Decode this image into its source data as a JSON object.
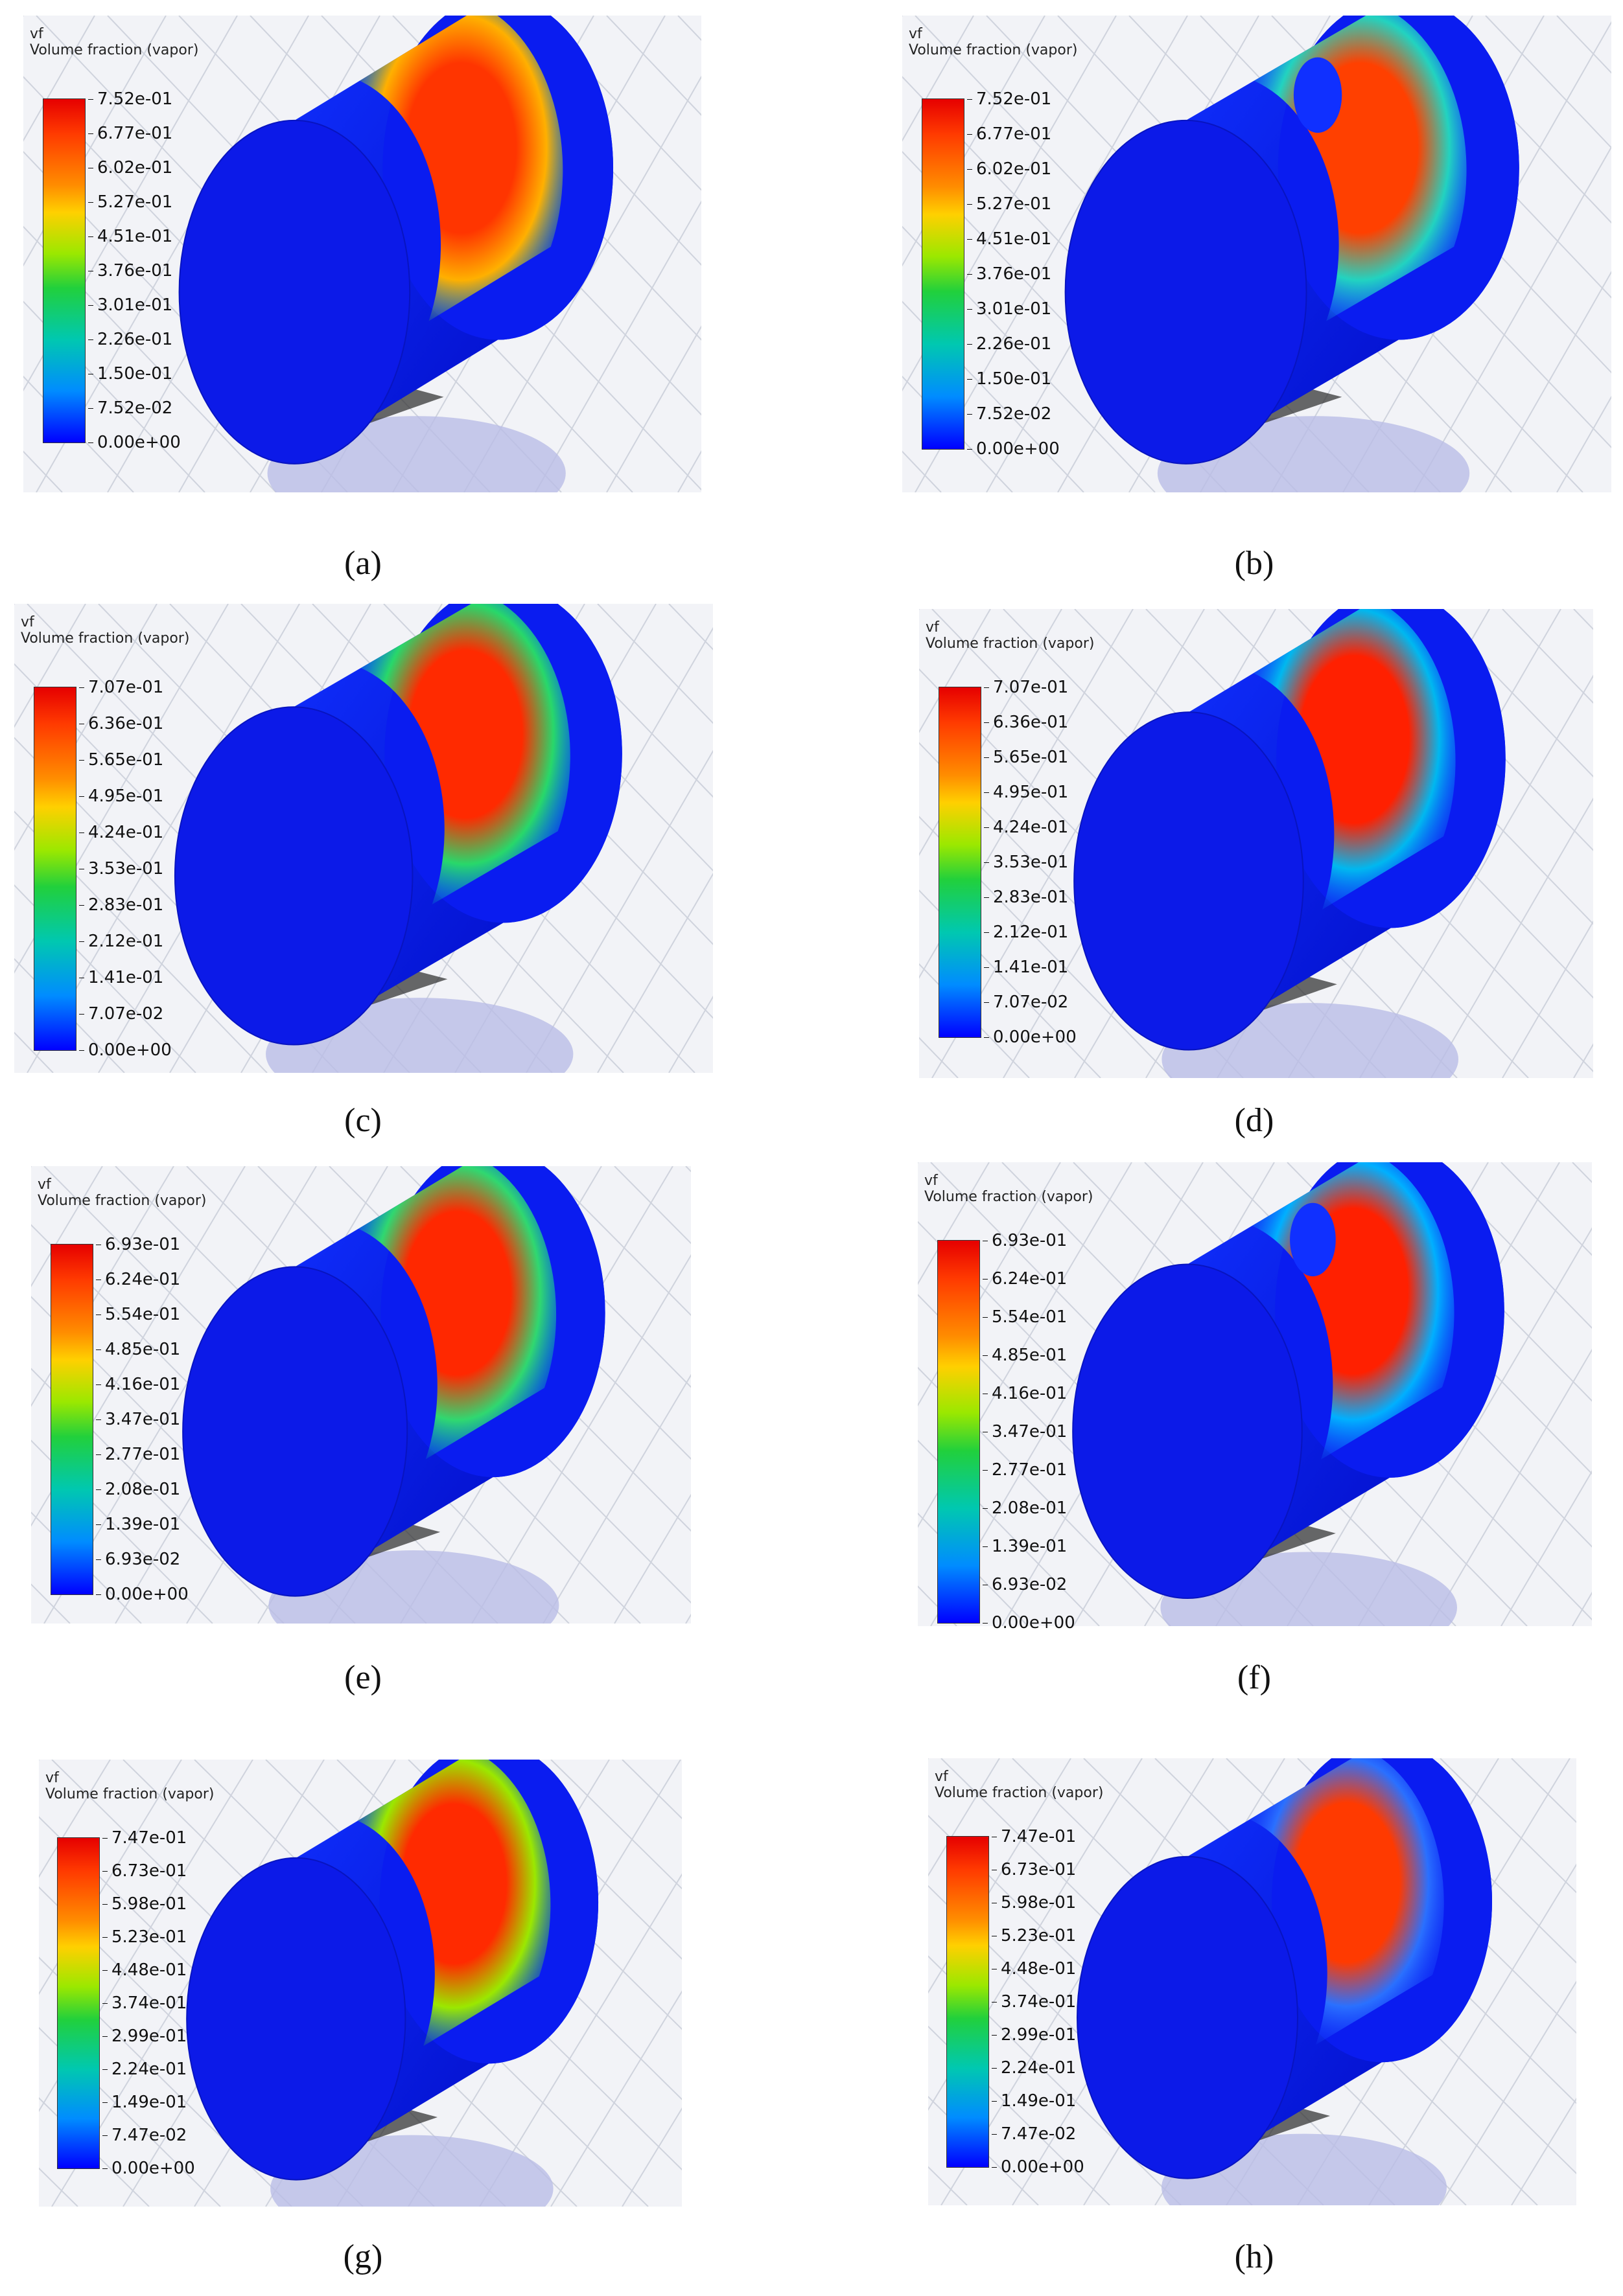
{
  "panels": [
    {
      "label": "(a)",
      "var": "vf",
      "quantity": "Volume fraction (vapor)",
      "ticks": [
        "7.52e-01",
        "6.77e-01",
        "6.02e-01",
        "5.27e-01",
        "4.51e-01",
        "3.76e-01",
        "3.01e-01",
        "2.26e-01",
        "1.50e-01",
        "7.52e-02",
        "0.00e+00"
      ]
    },
    {
      "label": "(b)",
      "var": "vf",
      "quantity": "Volume fraction (vapor)",
      "ticks": [
        "7.52e-01",
        "6.77e-01",
        "6.02e-01",
        "5.27e-01",
        "4.51e-01",
        "3.76e-01",
        "3.01e-01",
        "2.26e-01",
        "1.50e-01",
        "7.52e-02",
        "0.00e+00"
      ]
    },
    {
      "label": "(c)",
      "var": "vf",
      "quantity": "Volume fraction (vapor)",
      "ticks": [
        "7.07e-01",
        "6.36e-01",
        "5.65e-01",
        "4.95e-01",
        "4.24e-01",
        "3.53e-01",
        "2.83e-01",
        "2.12e-01",
        "1.41e-01",
        "7.07e-02",
        "0.00e+00"
      ]
    },
    {
      "label": "(d)",
      "var": "vf",
      "quantity": "Volume fraction (vapor)",
      "ticks": [
        "7.07e-01",
        "6.36e-01",
        "5.65e-01",
        "4.95e-01",
        "4.24e-01",
        "3.53e-01",
        "2.83e-01",
        "2.12e-01",
        "1.41e-01",
        "7.07e-02",
        "0.00e+00"
      ]
    },
    {
      "label": "(e)",
      "var": "vf",
      "quantity": "Volume fraction (vapor)",
      "ticks": [
        "6.93e-01",
        "6.24e-01",
        "5.54e-01",
        "4.85e-01",
        "4.16e-01",
        "3.47e-01",
        "2.77e-01",
        "2.08e-01",
        "1.39e-01",
        "6.93e-02",
        "0.00e+00"
      ]
    },
    {
      "label": "(f)",
      "var": "vf",
      "quantity": "Volume fraction (vapor)",
      "ticks": [
        "6.93e-01",
        "6.24e-01",
        "5.54e-01",
        "4.85e-01",
        "4.16e-01",
        "3.47e-01",
        "2.77e-01",
        "2.08e-01",
        "1.39e-01",
        "6.93e-02",
        "0.00e+00"
      ]
    },
    {
      "label": "(g)",
      "var": "vf",
      "quantity": "Volume fraction (vapor)",
      "ticks": [
        "7.47e-01",
        "6.73e-01",
        "5.98e-01",
        "5.23e-01",
        "4.48e-01",
        "3.74e-01",
        "2.99e-01",
        "2.24e-01",
        "1.49e-01",
        "7.47e-02",
        "0.00e+00"
      ]
    },
    {
      "label": "(h)",
      "var": "vf",
      "quantity": "Volume fraction (vapor)",
      "ticks": [
        "7.47e-01",
        "6.73e-01",
        "5.98e-01",
        "5.23e-01",
        "4.48e-01",
        "3.74e-01",
        "2.99e-01",
        "2.24e-01",
        "1.49e-01",
        "7.47e-02",
        "0.00e+00"
      ]
    }
  ]
}
